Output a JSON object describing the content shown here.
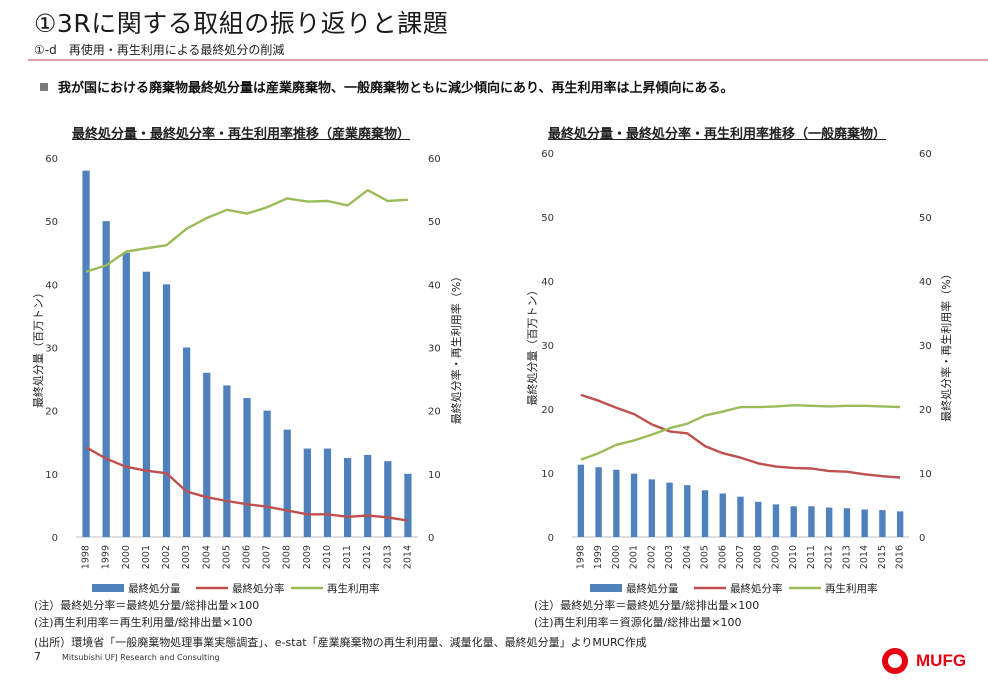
{
  "page": {
    "title": "①3Rに関する取組の振り返りと課題",
    "subtitle": "①-d　再使用・再生利用による最終処分の削減",
    "lead": "我が国における廃棄物最終処分量は産業廃棄物、一般廃棄物ともに減少傾向にあり、再生利用率は上昇傾向にある。",
    "source": "(出所）環境省「一般廃棄物処理事業実態調査」、e-stat「産業廃棄物の再生利用量、減量化量、最終処分量」よりMURC作成",
    "page_number": "7",
    "company": "Mitsubishi UFJ Research and Consulting",
    "logo_text": "MUFG"
  },
  "chart_data": [
    {
      "type": "bar+line",
      "title": "最終処分量・最終処分率・再生利用率推移（産業廃棄物）",
      "ylabel_left": "最終処分量（百万トン）",
      "ylabel_right": "最終処分率・再生利用率（%）",
      "ylim_left": [
        0,
        60
      ],
      "ylim_right": [
        0,
        60
      ],
      "yticks": [
        "0",
        "10",
        "20",
        "30",
        "40",
        "50",
        "60"
      ],
      "categories": [
        "1998",
        "1999",
        "2000",
        "2001",
        "2002",
        "2003",
        "2004",
        "2005",
        "2006",
        "2007",
        "2008",
        "2009",
        "2010",
        "2011",
        "2012",
        "2013",
        "2014"
      ],
      "series": [
        {
          "name": "最終処分量",
          "kind": "bar",
          "axis": "left",
          "color": "#4f81bd",
          "values": [
            58,
            50,
            45,
            42,
            40,
            30,
            26,
            24,
            22,
            20,
            17,
            14,
            14,
            12.5,
            13,
            12,
            10
          ]
        },
        {
          "name": "最終処分率",
          "kind": "line",
          "axis": "right",
          "color": "#c0504d",
          "values": [
            14.2,
            12.4,
            11.1,
            10.5,
            10.1,
            7.2,
            6.3,
            5.7,
            5.2,
            4.8,
            4.2,
            3.6,
            3.6,
            3.2,
            3.4,
            3.1,
            2.6
          ]
        },
        {
          "name": "再生利用率",
          "kind": "line",
          "axis": "right",
          "color": "#9bbb59",
          "values": [
            42,
            43,
            45.2,
            45.7,
            46.2,
            48.8,
            50.5,
            51.8,
            51.2,
            52.2,
            53.6,
            53.1,
            53.2,
            52.5,
            54.9,
            53.2,
            53.4
          ]
        }
      ],
      "legend_position": "bottom",
      "notes": [
        "(注）最終処分率＝最終処分量/総排出量×100",
        "(注)再生利用率＝再生利用量/総排出量×100"
      ]
    },
    {
      "type": "bar+line",
      "title": "最終処分量・最終処分率・再生利用率推移（一般廃棄物）",
      "ylabel_left": "最終処分量（百万トン）",
      "ylabel_right": "最終処分率・再生利用率（%）",
      "ylim_left": [
        0,
        60
      ],
      "ylim_right": [
        0,
        60
      ],
      "yticks": [
        "0",
        "10",
        "20",
        "30",
        "40",
        "50",
        "60"
      ],
      "categories": [
        "1998",
        "1999",
        "2000",
        "2001",
        "2002",
        "2003",
        "2004",
        "2005",
        "2006",
        "2007",
        "2008",
        "2009",
        "2010",
        "2011",
        "2012",
        "2013",
        "2014",
        "2015",
        "2016"
      ],
      "series": [
        {
          "name": "最終処分量",
          "kind": "bar",
          "axis": "left",
          "color": "#4f81bd",
          "values": [
            11.3,
            10.9,
            10.5,
            9.9,
            9.0,
            8.5,
            8.1,
            7.3,
            6.8,
            6.3,
            5.5,
            5.1,
            4.8,
            4.8,
            4.6,
            4.5,
            4.3,
            4.2,
            4.0
          ]
        },
        {
          "name": "最終処分率",
          "kind": "line",
          "axis": "right",
          "color": "#c0504d",
          "values": [
            22.2,
            21.3,
            20.2,
            19.2,
            17.6,
            16.5,
            16.2,
            14.2,
            13.1,
            12.4,
            11.5,
            11.0,
            10.8,
            10.7,
            10.3,
            10.2,
            9.8,
            9.5,
            9.3
          ]
        },
        {
          "name": "再生利用率",
          "kind": "line",
          "axis": "right",
          "color": "#9bbb59",
          "values": [
            12.1,
            13.1,
            14.4,
            15.1,
            16.0,
            17.0,
            17.7,
            19.0,
            19.6,
            20.3,
            20.3,
            20.4,
            20.6,
            20.5,
            20.4,
            20.5,
            20.5,
            20.4,
            20.3
          ]
        }
      ],
      "legend_position": "bottom",
      "notes": [
        "(注）最終処分率＝最終処分量/総排出量×100",
        "(注)再生利用率＝資源化量/総排出量×100"
      ]
    }
  ]
}
